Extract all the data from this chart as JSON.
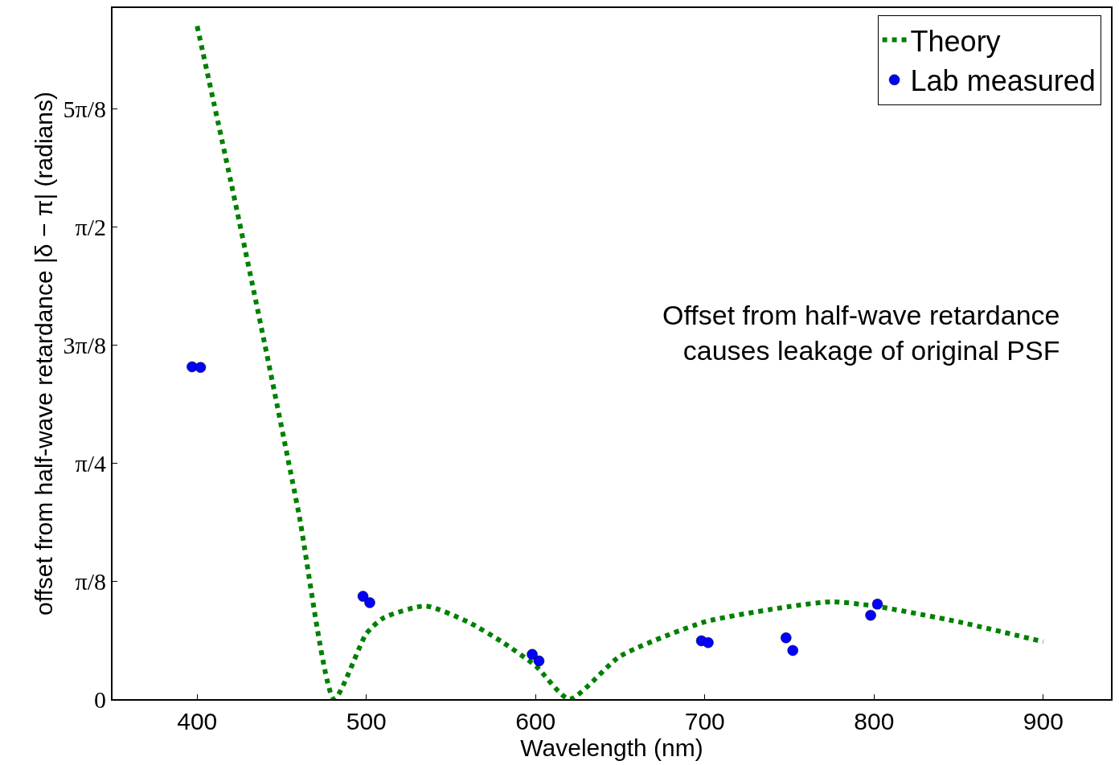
{
  "chart_data": {
    "type": "line",
    "xlabel": "Wavelength (nm)",
    "ylabel": "offset from half-wave retardance |δ − π| (radians)",
    "xlim": [
      350,
      940
    ],
    "xticks": [
      400,
      500,
      600,
      700,
      800,
      900
    ],
    "ylim": [
      0,
      2.3
    ],
    "yticks": [
      {
        "value": 0,
        "label": "0"
      },
      {
        "value": 0.3927,
        "label": "π/8"
      },
      {
        "value": 0.7854,
        "label": "π/4"
      },
      {
        "value": 1.1781,
        "label": "3π/8"
      },
      {
        "value": 1.5708,
        "label": "π/2"
      },
      {
        "value": 1.9635,
        "label": "5π/8"
      }
    ],
    "legend": "top right",
    "annotations": [
      "Offset from half-wave retardance\ncauses leakage of original PSF"
    ],
    "series": [
      {
        "name": "Theory",
        "color": "#008000",
        "line_style": "dotted",
        "marker": "none",
        "x": [
          400,
          420,
          440,
          460,
          481,
          500,
          510,
          535,
          560,
          580,
          600,
          620,
          650,
          700,
          750,
          775,
          800,
          850,
          900
        ],
        "values": [
          2.24,
          1.72,
          1.18,
          0.62,
          0.0,
          0.218,
          0.27,
          0.31,
          0.257,
          0.191,
          0.111,
          0.0,
          0.143,
          0.257,
          0.308,
          0.324,
          0.31,
          0.257,
          0.191
        ]
      },
      {
        "name": "Lab measured",
        "type": "scatter",
        "color": "#0000ff",
        "marker": "circle",
        "x": [
          397,
          402,
          498,
          502,
          598,
          602,
          698,
          702,
          748,
          752,
          798,
          802
        ],
        "values": [
          1.106,
          1.104,
          0.342,
          0.321,
          0.149,
          0.127,
          0.194,
          0.188,
          0.204,
          0.162,
          0.279,
          0.316
        ]
      }
    ]
  }
}
